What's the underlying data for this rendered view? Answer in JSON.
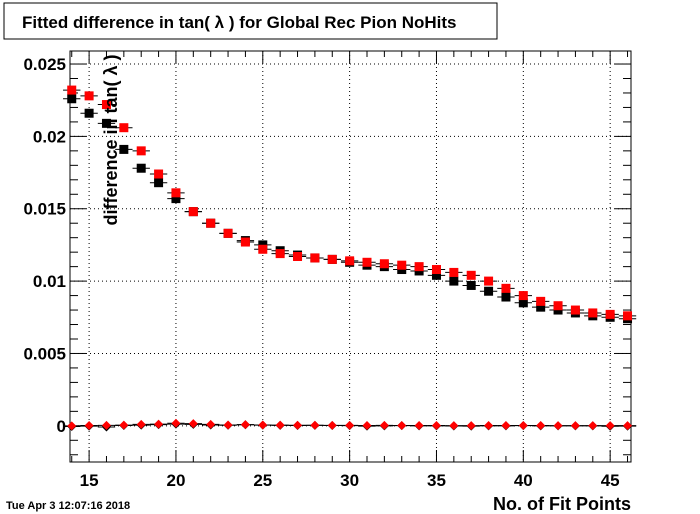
{
  "page": {
    "title": "Fitted difference in tan( λ ) for Global Rec Pion NoHits",
    "timestamp": "Tue Apr  3 12:07:16 2018"
  },
  "colors": {
    "series_black": "#000000",
    "series_red": "#ff0000",
    "frame": "#000000"
  },
  "chart_data": {
    "type": "scatter",
    "title": "Fitted difference in tan( λ ) for Global Rec Pion NoHits",
    "xlabel": "No. of Fit Points",
    "ylabel": "difference in tan( λ )",
    "xlim": [
      13.9,
      46.2
    ],
    "ylim": [
      -0.0025,
      0.0259
    ],
    "x_ticks": [
      15,
      20,
      25,
      30,
      35,
      40,
      45
    ],
    "x_tick_labels": [
      "15",
      "20",
      "25",
      "30",
      "35",
      "40",
      "45"
    ],
    "y_ticks": [
      0,
      0.005,
      0.01,
      0.015,
      0.02,
      0.025
    ],
    "y_tick_labels": [
      "0",
      "0.005",
      "0.01",
      "0.015",
      "0.02",
      "0.025"
    ],
    "grid": true,
    "x": [
      14,
      15,
      16,
      17,
      18,
      19,
      20,
      21,
      22,
      23,
      24,
      25,
      26,
      27,
      28,
      29,
      30,
      31,
      32,
      33,
      34,
      35,
      36,
      37,
      38,
      39,
      40,
      41,
      42,
      43,
      44,
      45,
      46
    ],
    "series": [
      {
        "marker": "square",
        "color": "#000000",
        "values": [
          0.0226,
          0.0216,
          0.0209,
          0.0191,
          0.0178,
          0.0168,
          0.0157,
          0.0148,
          0.014,
          0.0133,
          0.0128,
          0.0125,
          0.0121,
          0.0118,
          0.0116,
          0.0115,
          0.0113,
          0.0111,
          0.011,
          0.0108,
          0.0107,
          0.0104,
          0.01,
          0.0097,
          0.0093,
          0.0089,
          0.0085,
          0.0082,
          0.008,
          0.0078,
          0.0076,
          0.0075,
          0.0074
        ]
      },
      {
        "marker": "square",
        "color": "#ff0000",
        "values": [
          0.0232,
          0.0228,
          0.0222,
          0.0206,
          0.019,
          0.0174,
          0.0161,
          0.0148,
          0.014,
          0.0133,
          0.0127,
          0.0122,
          0.0119,
          0.0117,
          0.0116,
          0.0115,
          0.0114,
          0.0113,
          0.0112,
          0.0111,
          0.011,
          0.0108,
          0.0106,
          0.0104,
          0.01,
          0.0095,
          0.009,
          0.0086,
          0.0083,
          0.008,
          0.0078,
          0.0077,
          0.0076
        ]
      },
      {
        "marker": "diamond",
        "color": "#000000",
        "values": [
          -5e-05,
          -2e-05,
          -8e-05,
          2e-05,
          5e-05,
          8e-05,
          0.00012,
          0.0001,
          6e-05,
          4e-05,
          7e-05,
          5e-05,
          3e-05,
          2e-05,
          3e-05,
          2e-05,
          1e-05,
          -2e-05,
          0.0,
          1e-05,
          0.0,
          0.0,
          -1e-05,
          -2e-05,
          0.0,
          0.0,
          1e-05,
          0.0,
          0.0,
          0.0,
          0.0,
          -3e-05,
          -2e-05
        ]
      },
      {
        "marker": "diamond",
        "color": "#ff0000",
        "values": [
          0.0,
          2e-05,
          3e-05,
          5e-05,
          0.0001,
          0.00012,
          0.00018,
          0.00015,
          0.0001,
          6e-05,
          8e-05,
          6e-05,
          5e-05,
          4e-05,
          4e-05,
          3e-05,
          3e-05,
          2e-05,
          3e-05,
          2e-05,
          2e-05,
          2e-05,
          1e-05,
          1e-05,
          2e-05,
          2e-05,
          2e-05,
          2e-05,
          1e-05,
          1e-05,
          1e-05,
          1e-05,
          1e-05
        ]
      }
    ]
  }
}
